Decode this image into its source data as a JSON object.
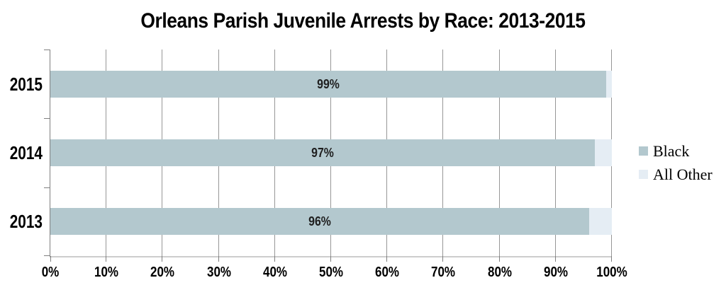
{
  "chart_data": {
    "type": "bar",
    "orientation": "horizontal",
    "stacked": true,
    "title": "Orleans Parish Juvenile Arrests by Race: 2013-2015",
    "categories": [
      "2015",
      "2014",
      "2013"
    ],
    "series": [
      {
        "name": "Black",
        "color": "#b3c8ce",
        "values": [
          99,
          97,
          96
        ],
        "data_labels": [
          "99%",
          "97%",
          "96%"
        ]
      },
      {
        "name": "All Other",
        "color": "#e5edf4",
        "values": [
          1,
          3,
          4
        ],
        "data_labels": [
          "",
          "",
          ""
        ]
      }
    ],
    "xlim": [
      0,
      100
    ],
    "x_tick_labels": [
      "0%",
      "10%",
      "20%",
      "30%",
      "40%",
      "50%",
      "60%",
      "70%",
      "80%",
      "90%",
      "100%"
    ],
    "grid": "vertical-gridlines",
    "legend_position": "right"
  },
  "legend": {
    "items": [
      {
        "label": "Black",
        "color": "#b3c8ce"
      },
      {
        "label": "All Other",
        "color": "#e5edf4"
      }
    ]
  }
}
